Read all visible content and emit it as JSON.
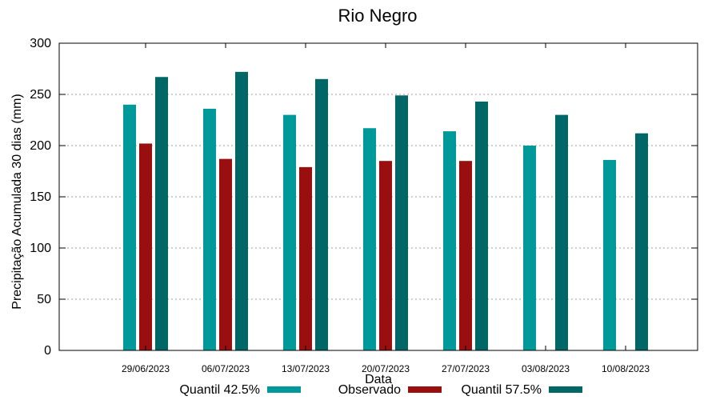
{
  "chart_data": {
    "type": "bar",
    "title": "Rio Negro",
    "xlabel": "Data",
    "ylabel": "Precipitação Acumulada 30 dias (mm)",
    "ylim": [
      0,
      300
    ],
    "yticks": [
      0,
      50,
      100,
      150,
      200,
      250,
      300
    ],
    "grid": true,
    "legend_position": "bottom",
    "categories": [
      "29/06/2023",
      "06/07/2023",
      "13/07/2023",
      "20/07/2023",
      "27/07/2023",
      "03/08/2023",
      "10/08/2023"
    ],
    "series": [
      {
        "name": "Quantil 42.5%",
        "color": "#009999",
        "values": [
          240,
          236,
          230,
          217,
          214,
          200,
          186
        ]
      },
      {
        "name": "Observado",
        "color": "#990f0f",
        "values": [
          202,
          187,
          179,
          185,
          185,
          null,
          null
        ]
      },
      {
        "name": "Quantil 57.5%",
        "color": "#006666",
        "values": [
          267,
          272,
          265,
          249,
          243,
          230,
          212
        ]
      }
    ]
  }
}
